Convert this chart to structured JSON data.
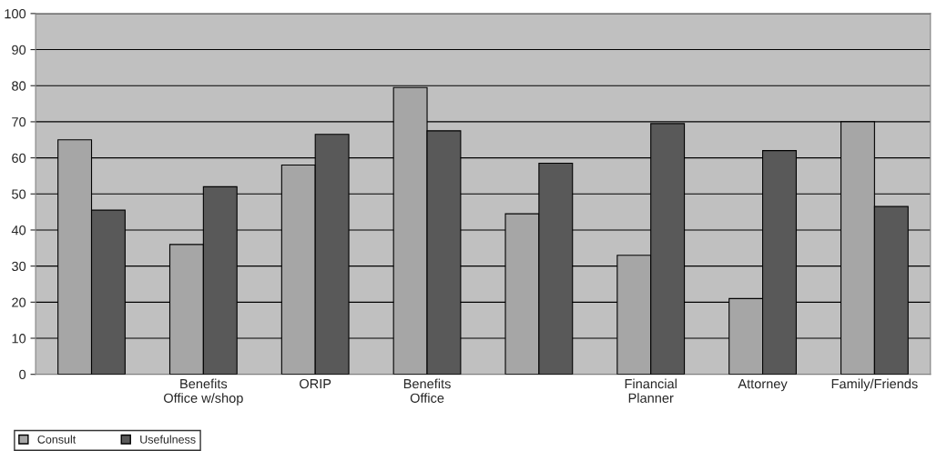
{
  "chart_data": {
    "type": "bar",
    "categories": [
      null,
      "Benefits\nOffice w/shop",
      "ORIP",
      "Benefits\nOffice",
      null,
      "Financial\nPlanner",
      "Attorney",
      "Family/Friends"
    ],
    "series": [
      {
        "name": "Consult",
        "color": "#a6a6a6",
        "values": [
          65,
          36,
          58,
          79.5,
          44.5,
          33,
          21,
          70
        ]
      },
      {
        "name": "Usefulness",
        "color": "#595959",
        "values": [
          45.5,
          52,
          66.5,
          67.5,
          58.5,
          69.5,
          62,
          46.5
        ]
      }
    ],
    "ylim": [
      0,
      100
    ],
    "yticks": [
      0,
      10,
      20,
      30,
      40,
      50,
      60,
      70,
      80,
      90,
      100
    ],
    "grid": "y",
    "legend": "bottom left"
  }
}
